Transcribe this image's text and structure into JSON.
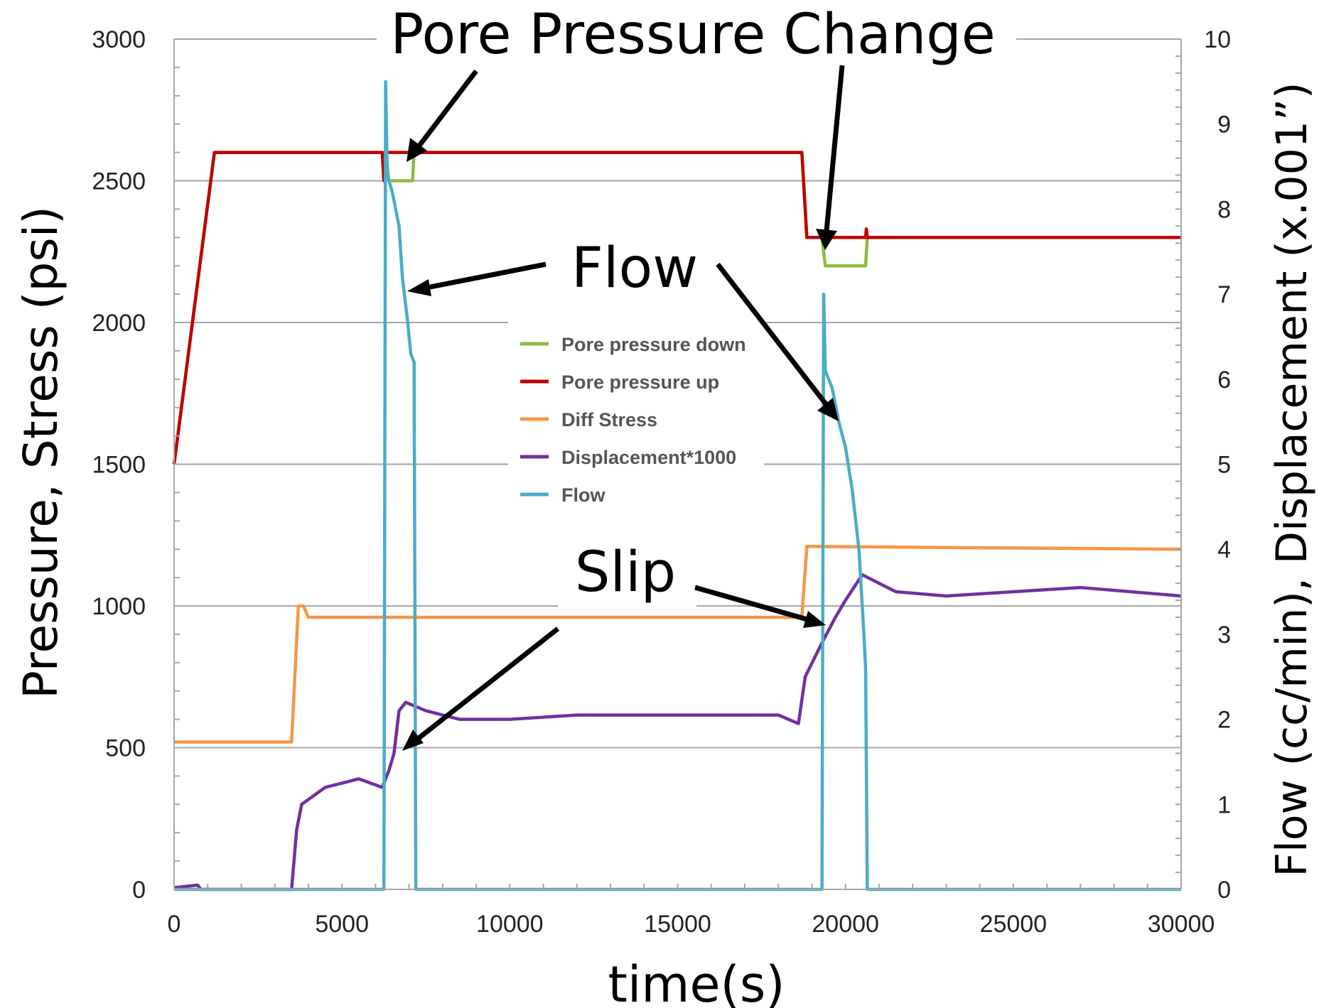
{
  "chart_data": {
    "type": "line",
    "title": "",
    "xlabel": "time(s)",
    "ylabel": "Pressure, Stress (psi)",
    "y2label": "Flow (cc/min), Displacement (x.001”)",
    "xlim": [
      0,
      30000
    ],
    "ylim": [
      0,
      3000
    ],
    "y2lim": [
      0,
      10
    ],
    "x_ticks": [
      0,
      5000,
      10000,
      15000,
      20000,
      25000,
      30000
    ],
    "y_ticks": [
      0,
      500,
      1000,
      1500,
      2000,
      2500,
      3000
    ],
    "y2_ticks": [
      0,
      1,
      2,
      3,
      4,
      5,
      6,
      7,
      8,
      9,
      10
    ],
    "grid": "horizontal",
    "legend_position": "center",
    "series": [
      {
        "name": "Pore pressure down",
        "color": "#8dbb3f",
        "axis": "left",
        "points": [
          [
            0,
            1500
          ],
          [
            1200,
            2600
          ],
          [
            6300,
            2600
          ],
          [
            6400,
            2500
          ],
          [
            7100,
            2500
          ],
          [
            7150,
            2600
          ],
          [
            18700,
            2600
          ],
          [
            18850,
            2300
          ],
          [
            19300,
            2300
          ],
          [
            19400,
            2200
          ],
          [
            20600,
            2200
          ],
          [
            20650,
            2300
          ],
          [
            30000,
            2300
          ]
        ]
      },
      {
        "name": "Pore pressure up",
        "color": "#c00000",
        "axis": "left",
        "points": [
          [
            0,
            1500
          ],
          [
            1200,
            2600
          ],
          [
            6200,
            2600
          ],
          [
            6250,
            2500
          ],
          [
            6300,
            2600
          ],
          [
            18700,
            2600
          ],
          [
            18850,
            2300
          ],
          [
            20600,
            2300
          ],
          [
            20620,
            2330
          ],
          [
            20650,
            2300
          ],
          [
            30000,
            2300
          ]
        ]
      },
      {
        "name": "Diff Stress",
        "color": "#f79646",
        "axis": "left",
        "points": [
          [
            0,
            520
          ],
          [
            3500,
            520
          ],
          [
            3700,
            1000
          ],
          [
            3850,
            1000
          ],
          [
            4000,
            960
          ],
          [
            18700,
            960
          ],
          [
            18850,
            1210
          ],
          [
            30000,
            1200
          ]
        ]
      },
      {
        "name": "Displacement*1000",
        "color": "#7030a0",
        "axis": "right",
        "points": [
          [
            0,
            0.02
          ],
          [
            700,
            0.05
          ],
          [
            800,
            0
          ],
          [
            3500,
            0
          ],
          [
            3650,
            0.7
          ],
          [
            3800,
            1
          ],
          [
            4500,
            1.2
          ],
          [
            5500,
            1.3
          ],
          [
            6200,
            1.2
          ],
          [
            6400,
            1.4
          ],
          [
            6550,
            1.6
          ],
          [
            6700,
            2.1
          ],
          [
            6900,
            2.2
          ],
          [
            7500,
            2.1
          ],
          [
            8500,
            2
          ],
          [
            10000,
            2
          ],
          [
            12000,
            2.05
          ],
          [
            14000,
            2.05
          ],
          [
            16000,
            2.05
          ],
          [
            18000,
            2.05
          ],
          [
            18600,
            1.95
          ],
          [
            18800,
            2.5
          ],
          [
            19300,
            2.9
          ],
          [
            19700,
            3.2
          ],
          [
            20000,
            3.4
          ],
          [
            20500,
            3.7
          ],
          [
            21500,
            3.5
          ],
          [
            23000,
            3.45
          ],
          [
            25000,
            3.5
          ],
          [
            27000,
            3.55
          ],
          [
            30000,
            3.45
          ]
        ]
      },
      {
        "name": "Flow",
        "color": "#4bacc6",
        "axis": "right",
        "points": [
          [
            0,
            0
          ],
          [
            6250,
            0
          ],
          [
            6300,
            9.5
          ],
          [
            6350,
            8.4
          ],
          [
            6500,
            8.2
          ],
          [
            6700,
            7.8
          ],
          [
            6800,
            7.2
          ],
          [
            6950,
            6.7
          ],
          [
            7050,
            6.3
          ],
          [
            7150,
            6.2
          ],
          [
            7200,
            0
          ],
          [
            19300,
            0
          ],
          [
            19350,
            7
          ],
          [
            19400,
            6.1
          ],
          [
            19600,
            5.9
          ],
          [
            19800,
            5.5
          ],
          [
            20000,
            5.2
          ],
          [
            20200,
            4.7
          ],
          [
            20400,
            4
          ],
          [
            20550,
            3
          ],
          [
            20600,
            2.6
          ],
          [
            20650,
            0
          ],
          [
            30000,
            0
          ]
        ]
      }
    ],
    "annotations": [
      "Pore Pressure Change",
      "Flow",
      "Slip"
    ]
  }
}
